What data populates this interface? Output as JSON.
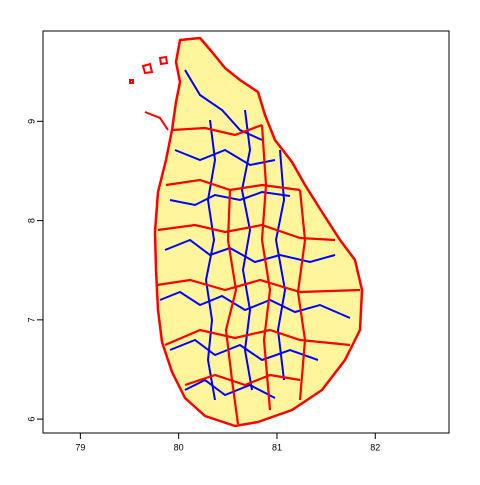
{
  "chart_data": {
    "type": "map",
    "xlim": [
      78.62,
      82.75
    ],
    "ylim": [
      5.86,
      9.91
    ],
    "xticks": [
      79,
      80,
      81,
      82
    ],
    "yticks": [
      6,
      7,
      8,
      9
    ]
  }
}
